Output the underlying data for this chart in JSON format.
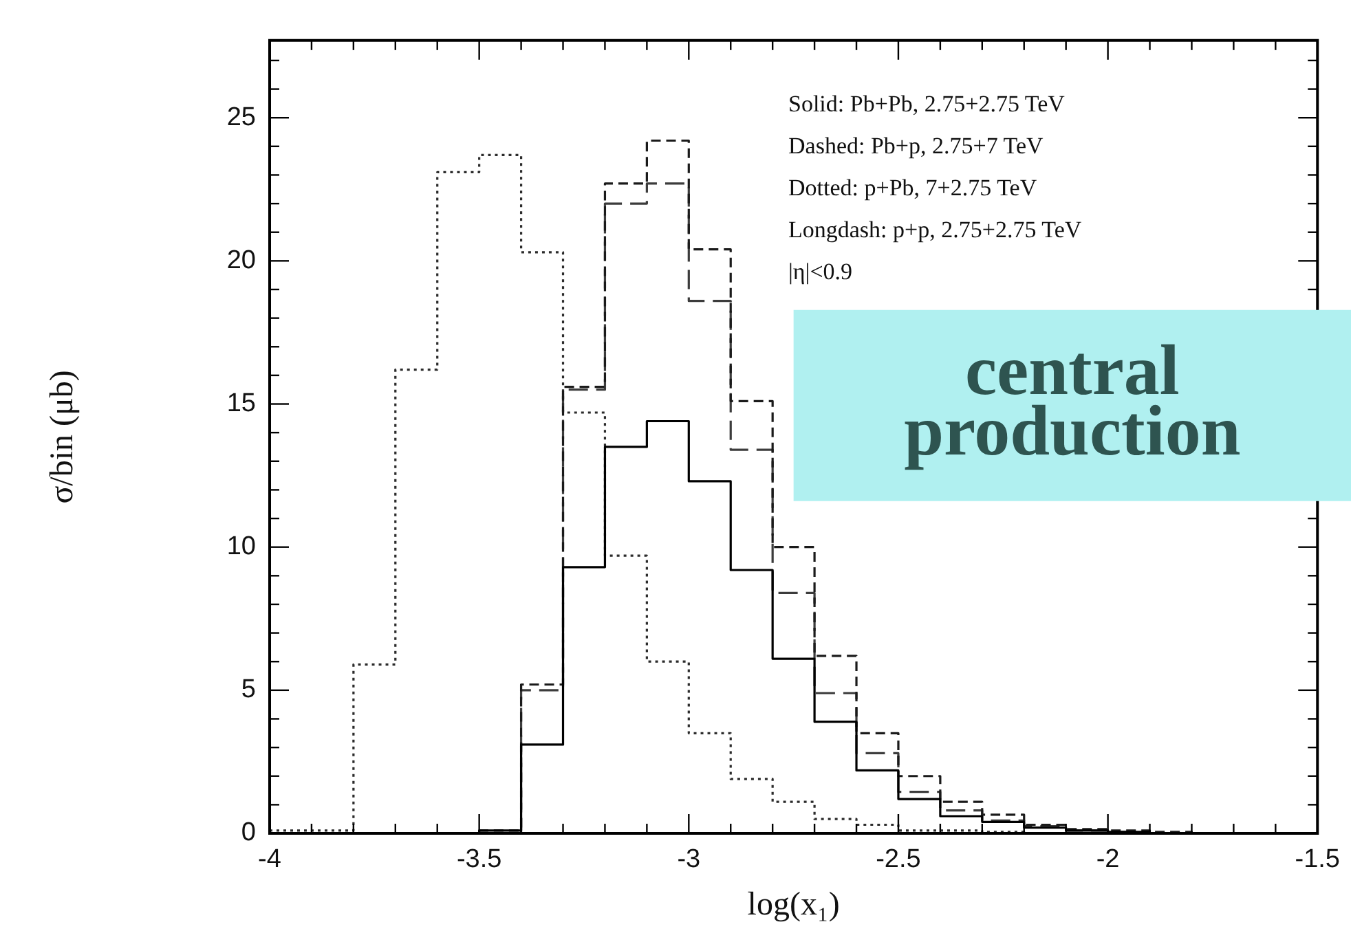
{
  "chart_data": {
    "type": "histogram",
    "xlabel": "log(x₁)",
    "ylabel": "σ/bin (μb)",
    "bins": [
      -4,
      -3.9,
      -3.8,
      -3.7,
      -3.6,
      -3.5,
      -3.4,
      -3.3,
      -3.2,
      -3.1,
      -3,
      -2.9,
      -2.8,
      -2.7,
      -2.6,
      -2.5,
      -2.4,
      -2.3,
      -2.2,
      -2.1,
      -2,
      -1.9,
      -1.8,
      -1.7,
      -1.6,
      -1.5
    ],
    "series": [
      {
        "color": "#000000",
        "line_style": "solid",
        "values": [
          0,
          0,
          0,
          0,
          0,
          0.1,
          3.1,
          9.3,
          13.5,
          14.4,
          12.3,
          9.2,
          6.1,
          3.9,
          2.2,
          1.2,
          0.6,
          0.4,
          0.2,
          0.1,
          0.05,
          0,
          0,
          0,
          0
        ]
      },
      {
        "color": "#1a1a1a",
        "line_style": "dashed",
        "values": [
          0,
          0,
          0,
          0,
          0,
          0.1,
          5.2,
          15.6,
          22.7,
          24.2,
          20.4,
          15.1,
          10.0,
          6.2,
          3.5,
          2.0,
          1.1,
          0.65,
          0.3,
          0.15,
          0.1,
          0.05,
          0,
          0,
          0
        ]
      },
      {
        "color": "#2b2b2b",
        "line_style": "dotted",
        "values": [
          0.1,
          0.1,
          5.9,
          16.2,
          23.1,
          23.7,
          20.3,
          14.7,
          9.7,
          6.0,
          3.5,
          1.9,
          1.1,
          0.5,
          0.3,
          0.1,
          0.1,
          0.05,
          0,
          0,
          0,
          0,
          0,
          0,
          0
        ]
      },
      {
        "color": "#3c3c3c",
        "line_style": "dashed",
        "values": [
          0,
          0,
          0,
          0,
          0,
          0,
          5.0,
          15.5,
          22.0,
          22.7,
          18.6,
          13.4,
          8.4,
          4.9,
          2.8,
          1.45,
          0.8,
          0.45,
          0.25,
          0.1,
          0.05,
          0,
          0,
          0,
          0
        ]
      }
    ],
    "xlim": [
      -4,
      -1.5
    ],
    "xticks": [
      -4,
      -3.5,
      -3,
      -2.5,
      -2,
      -1.5
    ],
    "ylim": [
      0,
      27.7
    ],
    "yticks": [
      0,
      5,
      10,
      15,
      20,
      25
    ],
    "grid": false,
    "legend": false,
    "annotations": [
      "Solid: Pb+Pb, 2.75+2.75 TeV",
      "Dashed: Pb+p, 2.75+7 TeV",
      "Dotted: p+Pb, 7+2.75 TeV",
      "Longdash: p+p, 2.75+2.75 TeV",
      "|η|<0.9",
      "central production"
    ]
  }
}
